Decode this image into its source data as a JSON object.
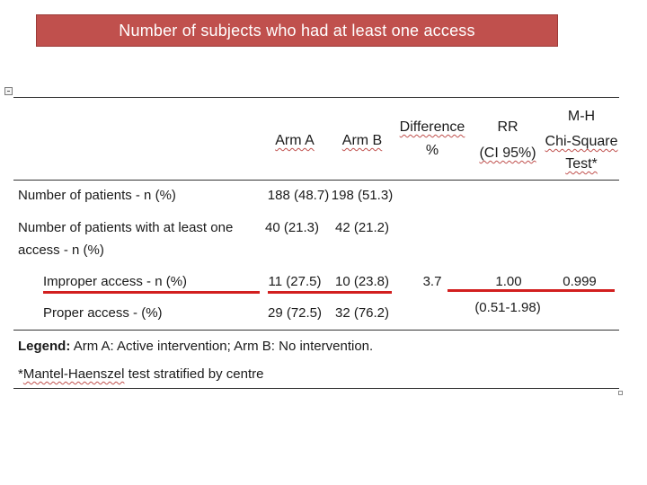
{
  "slide_title": "Number of subjects who had at least one access",
  "table": {
    "headers": {
      "arm_a": "Arm A",
      "arm_b": "Arm B",
      "difference_line1": "Difference",
      "difference_line2": "%",
      "rr_line1": "RR",
      "rr_line2": "(CI 95%)",
      "mh_line1": "M-H",
      "mh_line2": "Chi-Square",
      "mh_line3": "Test*"
    },
    "rows": [
      {
        "label": "Number of patients - n (%)",
        "arm_a": "188 (48.7)",
        "arm_b": "198 (51.3)"
      },
      {
        "label_line1": "Number of patients with at least one",
        "label_line2": "access - n (%)",
        "arm_a": "40 (21.3)",
        "arm_b": "42 (21.2)"
      },
      {
        "label": "Improper access - n (%)",
        "arm_a": "11 (27.5)",
        "arm_b": "10 (23.8)",
        "difference": "3.7",
        "rr": "1.00",
        "rr_ci": "(0.51-1.98)",
        "mh": "0.999"
      },
      {
        "label": "Proper access - (%)",
        "arm_a": "29 (72.5)",
        "arm_b": "32 (76.2)"
      }
    ],
    "legend_label": "Legend:",
    "legend_text": "Arm A: Active intervention; Arm B: No intervention.",
    "footnote_part1": "*",
    "footnote_part2": "Mantel-Haenszel",
    "footnote_part3": " test stratified by centre"
  },
  "colors": {
    "banner": "#c0504d",
    "highlight_line": "#d21f1f"
  }
}
